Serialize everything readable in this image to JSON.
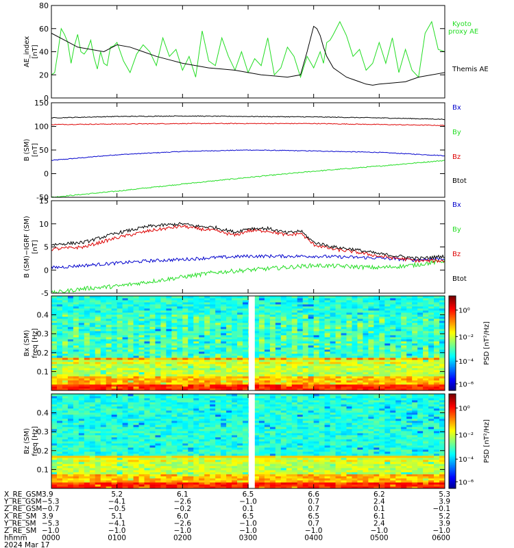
{
  "chart_data": [
    {
      "type": "line",
      "panel": "ae",
      "ylabel": "AE_index",
      "yunit": "[nT]",
      "ylim": [
        0,
        80
      ],
      "yticks": [
        0,
        20,
        40,
        60,
        80
      ],
      "xlim": [
        0,
        6
      ],
      "series": [
        {
          "name": "Kyoto proxy AE",
          "color": "#22dd22",
          "x": [
            0,
            0.05,
            0.1,
            0.15,
            0.2,
            0.25,
            0.3,
            0.35,
            0.4,
            0.45,
            0.5,
            0.55,
            0.6,
            0.65,
            0.7,
            0.75,
            0.8,
            0.85,
            0.9,
            0.95,
            1.0,
            1.1,
            1.2,
            1.3,
            1.4,
            1.5,
            1.6,
            1.7,
            1.8,
            1.9,
            2.0,
            2.1,
            2.2,
            2.3,
            2.4,
            2.5,
            2.6,
            2.7,
            2.8,
            2.9,
            3.0,
            3.1,
            3.2,
            3.3,
            3.4,
            3.5,
            3.6,
            3.7,
            3.8,
            3.9,
            4.0,
            4.1,
            4.15,
            4.2,
            4.25,
            4.3,
            4.4,
            4.5,
            4.6,
            4.7,
            4.8,
            4.9,
            5.0,
            5.1,
            5.2,
            5.3,
            5.4,
            5.5,
            5.6,
            5.7,
            5.8,
            5.9,
            6.0
          ],
          "y": [
            20,
            22,
            40,
            60,
            55,
            48,
            30,
            45,
            55,
            40,
            38,
            42,
            50,
            35,
            25,
            40,
            30,
            28,
            44,
            45,
            48,
            32,
            22,
            38,
            46,
            40,
            28,
            52,
            36,
            42,
            24,
            36,
            18,
            58,
            32,
            28,
            52,
            36,
            24,
            40,
            22,
            34,
            28,
            52,
            20,
            26,
            44,
            36,
            18,
            36,
            26,
            40,
            30,
            48,
            50,
            55,
            66,
            54,
            36,
            42,
            24,
            30,
            48,
            30,
            52,
            22,
            42,
            24,
            18,
            56,
            66,
            42,
            40
          ]
        },
        {
          "name": "Themis AE",
          "color": "#000000",
          "x": [
            0,
            0.2,
            0.4,
            0.6,
            0.8,
            1.0,
            1.2,
            1.4,
            1.6,
            1.8,
            2.0,
            2.2,
            2.4,
            2.6,
            2.8,
            3.0,
            3.2,
            3.4,
            3.6,
            3.8,
            3.9,
            4.0,
            4.05,
            4.1,
            4.15,
            4.2,
            4.3,
            4.4,
            4.5,
            4.6,
            4.7,
            4.8,
            4.9,
            5.0,
            5.2,
            5.4,
            5.6,
            5.8,
            6.0
          ],
          "y": [
            56,
            50,
            44,
            42,
            40,
            46,
            44,
            40,
            36,
            33,
            30,
            28,
            26,
            25,
            24,
            22,
            20,
            19,
            18,
            20,
            40,
            62,
            60,
            54,
            44,
            36,
            26,
            22,
            18,
            16,
            14,
            12,
            11,
            12,
            13,
            14,
            18,
            20,
            22
          ]
        }
      ],
      "legend": [
        "Kyoto proxy AE",
        "Themis AE"
      ]
    },
    {
      "type": "line",
      "panel": "bsm",
      "ylabel": "B (SM)",
      "yunit": "[nT]",
      "ylim": [
        -50,
        150
      ],
      "yticks": [
        -50,
        0,
        50,
        100,
        150
      ],
      "xlim": [
        0,
        6
      ],
      "series": [
        {
          "name": "Bx",
          "color": "#0000cc",
          "x": [
            0,
            1,
            2,
            3,
            4,
            5,
            6
          ],
          "y": [
            28,
            40,
            47,
            50,
            48,
            45,
            38
          ]
        },
        {
          "name": "By",
          "color": "#22dd22",
          "x": [
            0,
            1,
            2,
            3,
            4,
            5,
            6
          ],
          "y": [
            -50,
            -37,
            -22,
            -8,
            5,
            16,
            28
          ]
        },
        {
          "name": "Bz",
          "color": "#dd0000",
          "x": [
            0,
            1,
            2,
            3,
            4,
            5,
            6
          ],
          "y": [
            104,
            105,
            106,
            106,
            106,
            104,
            102
          ]
        },
        {
          "name": "Btot",
          "color": "#000000",
          "x": [
            0,
            1,
            2,
            3,
            4,
            5,
            6
          ],
          "y": [
            118,
            121,
            122,
            121,
            120,
            118,
            115
          ]
        }
      ],
      "legend": [
        "Bx",
        "By",
        "Bz",
        "Btot"
      ]
    },
    {
      "type": "line",
      "panel": "bdiff",
      "ylabel": "B (SM)−IGRF (SM)",
      "yunit": "[nT]",
      "ylim": [
        -5,
        15
      ],
      "yticks": [
        -5,
        0,
        5,
        10,
        15
      ],
      "xlim": [
        0,
        6
      ],
      "series": [
        {
          "name": "Bx",
          "color": "#0000cc",
          "x": [
            0,
            0.5,
            1,
            1.5,
            2,
            2.5,
            3,
            3.5,
            4,
            4.5,
            5,
            5.5,
            6
          ],
          "y": [
            0.5,
            1,
            1.5,
            2,
            2.3,
            2.7,
            3,
            3,
            3,
            2.8,
            2.6,
            2.2,
            2.5
          ]
        },
        {
          "name": "By",
          "color": "#22dd22",
          "x": [
            0,
            0.5,
            1,
            1.5,
            2,
            2.5,
            3,
            3.5,
            4,
            4.5,
            5,
            5.5,
            6
          ],
          "y": [
            -5,
            -4,
            -3.5,
            -2.5,
            -1.5,
            -0.5,
            0,
            0.5,
            1,
            0.8,
            0.5,
            1,
            2
          ]
        },
        {
          "name": "Bz",
          "color": "#dd0000",
          "x": [
            0,
            0.5,
            1,
            1.5,
            2,
            2.2,
            2.5,
            2.8,
            3,
            3.3,
            3.6,
            3.8,
            4,
            4.3,
            4.6,
            5,
            5.3,
            5.6,
            6
          ],
          "y": [
            4.5,
            5,
            7,
            8.5,
            9.5,
            9,
            8.5,
            7.5,
            8.5,
            8.5,
            7.5,
            8,
            5.5,
            4.5,
            4,
            3,
            2.5,
            2,
            2
          ]
        },
        {
          "name": "Btot",
          "color": "#000000",
          "x": [
            0,
            0.5,
            1,
            1.5,
            2,
            2.2,
            2.5,
            2.8,
            3,
            3.3,
            3.6,
            3.8,
            4,
            4.3,
            4.6,
            5,
            5.3,
            5.6,
            6
          ],
          "y": [
            5.5,
            6,
            8,
            9.5,
            10,
            9.5,
            9.2,
            8.2,
            9,
            9,
            8,
            8.5,
            6,
            5,
            4.5,
            3.5,
            3,
            2.5,
            3
          ]
        }
      ],
      "legend": [
        "Bx",
        "By",
        "Bz",
        "Btot"
      ]
    },
    {
      "type": "heatmap",
      "panel": "spec_bx",
      "ylabel": "Bx (SM)",
      "yunit": "freq [Hz]",
      "ylim": [
        0,
        0.5
      ],
      "yticks": [
        0.1,
        0.2,
        0.3,
        0.4
      ],
      "colorbar_label": "PSD [nT²/Hz]",
      "colorbar_ticks": [
        "10⁰",
        "10⁻²",
        "10⁻⁴",
        "10⁻⁶"
      ],
      "gap_x": 3.05
    },
    {
      "type": "heatmap",
      "panel": "spec_bz",
      "ylabel": "Bz (SM)",
      "yunit": "freq [Hz]",
      "ylim": [
        0,
        0.5
      ],
      "yticks": [
        0.1,
        0.2,
        0.3,
        0.4
      ],
      "colorbar_label": "PSD [nT²/Hz]",
      "colorbar_ticks": [
        "10⁰",
        "10⁻²",
        "10⁻⁴",
        "10⁻⁶"
      ],
      "gap_x": 3.05
    }
  ],
  "ephemeris": {
    "rows": [
      {
        "label": "X_RE_GSM",
        "values": [
          "3.9",
          "5.2",
          "6.1",
          "6.5",
          "6.6",
          "6.2",
          "5.3"
        ]
      },
      {
        "label": "Y_RE_GSM",
        "values": [
          "−5.3",
          "−4.1",
          "−2.6",
          "−1.0",
          "0.7",
          "2.4",
          "3.9"
        ]
      },
      {
        "label": "Z_RE_GSM",
        "values": [
          "−0.7",
          "−0.5",
          "−0.2",
          "0.1",
          "0.7",
          "0.1",
          "−0.1"
        ]
      },
      {
        "label": "X_RE_SM",
        "values": [
          "3.9",
          "5.1",
          "6.0",
          "6.5",
          "6.5",
          "6.1",
          "5.2"
        ]
      },
      {
        "label": "Y_RE_SM",
        "values": [
          "−5.3",
          "−4.1",
          "−2.6",
          "−1.0",
          "0.7",
          "2.4",
          "3.9"
        ]
      },
      {
        "label": "Z_RE_SM",
        "values": [
          "−1.0",
          "−1.0",
          "−1.0",
          "−1.0",
          "−1.0",
          "−1.0",
          "−1.0"
        ]
      },
      {
        "label": "hhmm",
        "values": [
          "0000",
          "0100",
          "0200",
          "0300",
          "0400",
          "0500",
          "0600"
        ]
      }
    ],
    "date": "2024 Mar 17"
  }
}
